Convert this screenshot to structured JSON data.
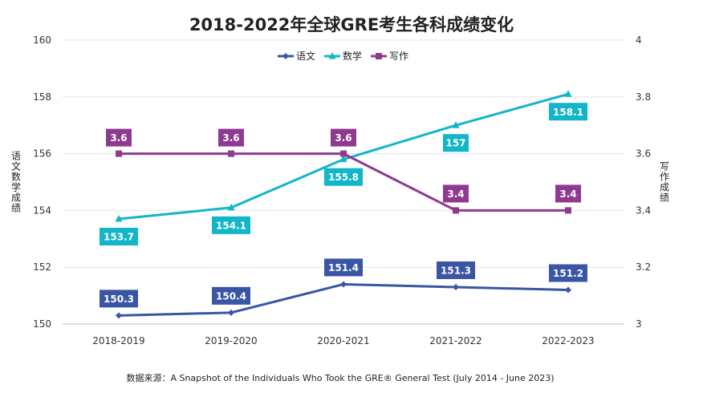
{
  "chart_data": {
    "type": "line",
    "title": "2018-2022年全球GRE考生各科成绩变化",
    "categories": [
      "2018-2019",
      "2019-2020",
      "2020-2021",
      "2021-2022",
      "2022-2023"
    ],
    "y_left": {
      "label": "语文数学成绩",
      "ylim": [
        150,
        160
      ],
      "ticks": [
        150,
        152,
        154,
        156,
        158,
        160
      ]
    },
    "y_right": {
      "label": "写作成绩",
      "ylim": [
        3,
        4
      ],
      "ticks": [
        "3",
        "3.2",
        "3.4",
        "3.6",
        "3.8",
        "4"
      ]
    },
    "series": [
      {
        "name": "语文",
        "axis": "left",
        "values": [
          150.3,
          150.4,
          151.4,
          151.3,
          151.2
        ],
        "labels": [
          "150.3",
          "150.4",
          "151.4",
          "151.3",
          "151.2"
        ],
        "color": "#3a55a3",
        "marker": "diamond"
      },
      {
        "name": "数学",
        "axis": "left",
        "values": [
          153.7,
          154.1,
          155.8,
          157,
          158.1
        ],
        "labels": [
          "153.7",
          "154.1",
          "155.8",
          "157",
          "158.1"
        ],
        "color": "#13b5c9",
        "marker": "triangle"
      },
      {
        "name": "写作",
        "axis": "right",
        "values": [
          3.6,
          3.6,
          3.6,
          3.4,
          3.4
        ],
        "labels": [
          "3.6",
          "3.6",
          "3.6",
          "3.4",
          "3.4"
        ],
        "color": "#8e3a8e",
        "marker": "square"
      }
    ],
    "legend_position": "top-center",
    "grid": true
  },
  "source_note": "数据来源：A Snapshot of the Individuals Who Took the GRE® General Test (July 2014 - June 2023)"
}
